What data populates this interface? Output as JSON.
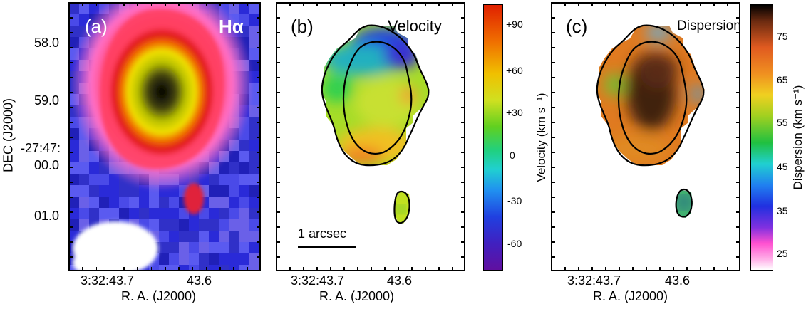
{
  "panels": {
    "a": {
      "label": "(a)",
      "line": "Hα",
      "label_color": "#ffffff"
    },
    "b": {
      "label": "(b)",
      "title": "Velocity"
    },
    "c": {
      "label": "(c)",
      "title": "Dispersion"
    }
  },
  "axes": {
    "ylabel": "DEC (J2000)",
    "xlabel": "R. A. (J2000)",
    "y_ticks": [
      "58.0",
      "59.0",
      "-27:47:",
      "00.0",
      "01.0"
    ],
    "x_ticks": [
      "3:32:43.7",
      "43.6"
    ]
  },
  "scalebar": {
    "label": "1 arcsec"
  },
  "colorbars": {
    "velocity": {
      "label": "Velocity (km s⁻¹)",
      "ticks": [
        "+90",
        "+60",
        "+30",
        "0",
        "-30",
        "-60"
      ]
    },
    "dispersion": {
      "label": "Dispersion (km s⁻¹)",
      "ticks": [
        "75",
        "65",
        "55",
        "45",
        "35",
        "25"
      ]
    }
  },
  "colors": {
    "halpha_background": "#3a3ae0",
    "halpha_peak": "#000000",
    "velocity_map_mid": "#9ed92e",
    "dispersion_map_mid": "#e0701e",
    "contour": "#000000"
  }
}
